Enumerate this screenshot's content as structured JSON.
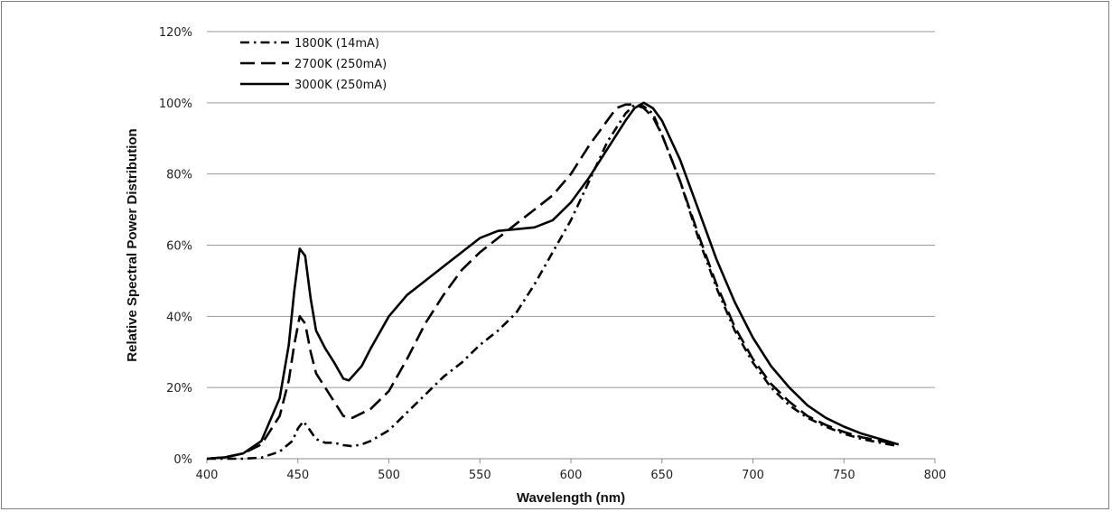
{
  "chart_data": {
    "type": "line",
    "title": "",
    "xlabel": "Wavelength (nm)",
    "ylabel": "Relative Spectral Power Distribution",
    "xlim": [
      400,
      800
    ],
    "ylim": [
      0,
      120
    ],
    "x_ticks": [
      "400",
      "450",
      "500",
      "550",
      "600",
      "650",
      "700",
      "750",
      "800"
    ],
    "y_ticks": [
      "0%",
      "20%",
      "40%",
      "60%",
      "80%",
      "100%",
      "120%"
    ],
    "grid": "horizontal",
    "legend_position": "top-left",
    "series": [
      {
        "name": "1800K (14mA)",
        "line_style": "dash-dot",
        "color": "#000000",
        "points": [
          [
            400,
            0
          ],
          [
            420,
            0
          ],
          [
            430,
            0.3
          ],
          [
            440,
            2
          ],
          [
            447,
            5
          ],
          [
            450,
            8.5
          ],
          [
            453,
            10.5
          ],
          [
            456,
            8.5
          ],
          [
            460,
            5.5
          ],
          [
            465,
            4.5
          ],
          [
            470,
            4.5
          ],
          [
            475,
            3.8
          ],
          [
            480,
            3.5
          ],
          [
            485,
            4
          ],
          [
            490,
            5
          ],
          [
            500,
            8
          ],
          [
            510,
            13
          ],
          [
            520,
            18
          ],
          [
            530,
            23
          ],
          [
            540,
            27
          ],
          [
            550,
            32
          ],
          [
            560,
            36
          ],
          [
            570,
            41
          ],
          [
            580,
            49
          ],
          [
            590,
            58
          ],
          [
            600,
            67
          ],
          [
            610,
            78
          ],
          [
            620,
            89
          ],
          [
            630,
            97
          ],
          [
            635,
            99.5
          ],
          [
            640,
            99
          ],
          [
            645,
            97
          ],
          [
            650,
            91
          ],
          [
            660,
            78
          ],
          [
            670,
            62
          ],
          [
            680,
            48
          ],
          [
            690,
            36
          ],
          [
            700,
            27
          ],
          [
            710,
            20
          ],
          [
            720,
            15
          ],
          [
            730,
            11.5
          ],
          [
            740,
            9
          ],
          [
            750,
            7
          ],
          [
            760,
            5.5
          ],
          [
            770,
            4.5
          ],
          [
            780,
            3.5
          ]
        ]
      },
      {
        "name": "2700K (250mA)",
        "line_style": "dash",
        "color": "#000000",
        "points": [
          [
            400,
            0
          ],
          [
            410,
            0.4
          ],
          [
            420,
            1.5
          ],
          [
            430,
            4
          ],
          [
            440,
            12
          ],
          [
            445,
            22
          ],
          [
            448,
            32
          ],
          [
            451,
            40
          ],
          [
            454,
            38
          ],
          [
            457,
            30
          ],
          [
            460,
            24
          ],
          [
            465,
            20
          ],
          [
            470,
            16
          ],
          [
            475,
            12
          ],
          [
            480,
            11.5
          ],
          [
            490,
            14
          ],
          [
            500,
            19
          ],
          [
            510,
            28
          ],
          [
            520,
            38
          ],
          [
            530,
            46
          ],
          [
            540,
            53
          ],
          [
            550,
            58
          ],
          [
            560,
            62
          ],
          [
            570,
            66
          ],
          [
            580,
            70
          ],
          [
            590,
            74
          ],
          [
            600,
            80
          ],
          [
            610,
            88
          ],
          [
            620,
            95
          ],
          [
            625,
            98.5
          ],
          [
            630,
            99.5
          ],
          [
            635,
            99.5
          ],
          [
            640,
            98.5
          ],
          [
            645,
            96
          ],
          [
            650,
            91
          ],
          [
            660,
            78
          ],
          [
            670,
            63
          ],
          [
            680,
            49
          ],
          [
            690,
            37
          ],
          [
            700,
            28
          ],
          [
            710,
            21
          ],
          [
            720,
            16
          ],
          [
            730,
            12
          ],
          [
            740,
            9.5
          ],
          [
            750,
            7.5
          ],
          [
            760,
            6
          ],
          [
            770,
            5
          ],
          [
            780,
            4
          ]
        ]
      },
      {
        "name": "3000K (250mA)",
        "line_style": "solid",
        "color": "#000000",
        "points": [
          [
            400,
            0
          ],
          [
            410,
            0.4
          ],
          [
            420,
            1.5
          ],
          [
            430,
            5
          ],
          [
            440,
            17
          ],
          [
            445,
            32
          ],
          [
            448,
            47
          ],
          [
            451,
            59
          ],
          [
            454,
            57
          ],
          [
            457,
            45
          ],
          [
            460,
            36
          ],
          [
            465,
            31
          ],
          [
            470,
            27
          ],
          [
            475,
            22.5
          ],
          [
            478,
            22
          ],
          [
            485,
            26
          ],
          [
            490,
            31
          ],
          [
            500,
            40
          ],
          [
            510,
            46
          ],
          [
            520,
            50
          ],
          [
            530,
            54
          ],
          [
            540,
            58
          ],
          [
            550,
            62
          ],
          [
            560,
            64
          ],
          [
            570,
            64.5
          ],
          [
            580,
            65
          ],
          [
            590,
            67
          ],
          [
            600,
            72
          ],
          [
            610,
            79
          ],
          [
            620,
            87
          ],
          [
            630,
            95
          ],
          [
            635,
            98.5
          ],
          [
            640,
            100
          ],
          [
            645,
            98.5
          ],
          [
            650,
            95
          ],
          [
            660,
            84
          ],
          [
            670,
            70
          ],
          [
            680,
            56
          ],
          [
            690,
            44
          ],
          [
            700,
            34
          ],
          [
            710,
            26
          ],
          [
            720,
            20
          ],
          [
            730,
            15
          ],
          [
            740,
            11.5
          ],
          [
            750,
            9
          ],
          [
            760,
            7
          ],
          [
            770,
            5.5
          ],
          [
            780,
            4
          ]
        ]
      }
    ]
  }
}
